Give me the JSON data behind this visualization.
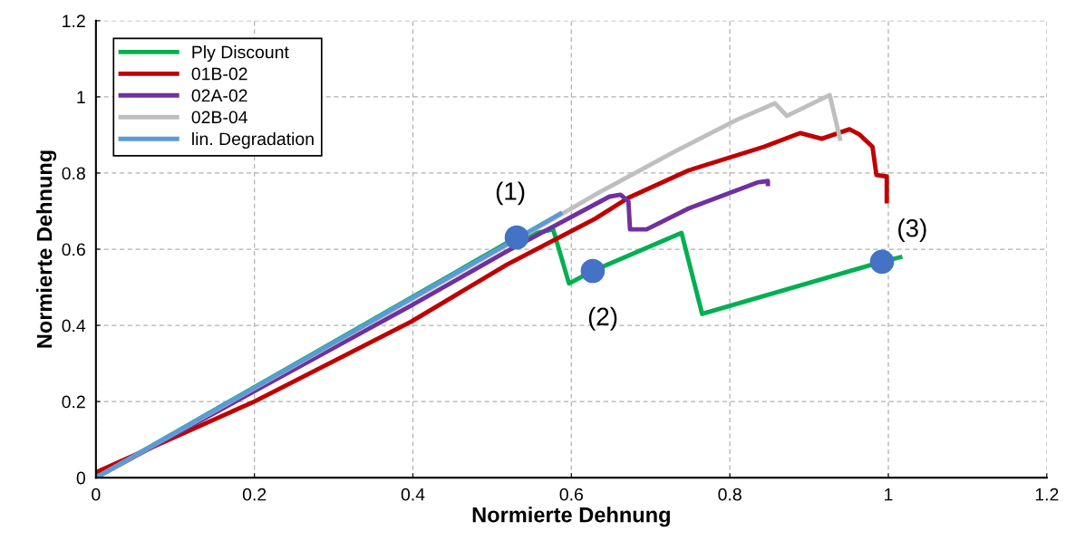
{
  "chart_data": {
    "type": "line",
    "xlabel": "Normierte Dehnung",
    "ylabel": "Normierte Dehnung",
    "xlim": [
      0,
      1.2
    ],
    "xticks": [
      0,
      0.2,
      0.4,
      0.6,
      0.8,
      1,
      1.2
    ],
    "ylim": [
      0,
      1.2
    ],
    "yticks": [
      0,
      0.2,
      0.4,
      0.6,
      0.8,
      1,
      1.2
    ],
    "grid": true,
    "legend": "top left",
    "line_style": "solid",
    "marker": "none",
    "series": [
      {
        "name": "Ply Discount",
        "color": "#00b050",
        "x": [
          0,
          0.531,
          0.577,
          0.597,
          0.627,
          0.739,
          0.765,
          0.992,
          1.015
        ],
        "values": [
          0,
          0.631,
          0.652,
          0.51,
          0.543,
          0.643,
          0.43,
          0.567,
          0.579
        ]
      },
      {
        "name": "01B-02",
        "color": "#c00000",
        "x": [
          0,
          0.2,
          0.398,
          0.519,
          0.63,
          0.672,
          0.748,
          0.843,
          0.889,
          0.916,
          0.951,
          0.963,
          0.98,
          0.985,
          0.998,
          0.998
        ],
        "values": [
          0.014,
          0.2,
          0.41,
          0.56,
          0.68,
          0.735,
          0.807,
          0.869,
          0.905,
          0.89,
          0.915,
          0.902,
          0.869,
          0.795,
          0.791,
          0.726
        ]
      },
      {
        "name": "02A-02",
        "color": "#7030a0",
        "x": [
          0,
          0.398,
          0.519,
          0.648,
          0.662,
          0.672,
          0.674,
          0.695,
          0.748,
          0.836,
          0.848,
          0.848
        ],
        "values": [
          0,
          0.452,
          0.595,
          0.738,
          0.743,
          0.726,
          0.652,
          0.652,
          0.707,
          0.776,
          0.779,
          0.771
        ]
      },
      {
        "name": "02B-04",
        "color": "#bfbfbf",
        "x": [
          0,
          0.4,
          0.586,
          0.634,
          0.729,
          0.809,
          0.857,
          0.872,
          0.926,
          0.939
        ],
        "values": [
          0,
          0.47,
          0.69,
          0.748,
          0.855,
          0.94,
          0.983,
          0.95,
          1.005,
          0.89
        ]
      },
      {
        "name": "lin. Degradation",
        "color": "#5b9bd5",
        "x": [
          0,
          0.586
        ],
        "values": [
          0,
          0.693
        ]
      },
      {
        "type": "scatter",
        "marker": "circle",
        "color": "#4472c4",
        "x": [
          0.531,
          0.627,
          0.992
        ],
        "values": [
          0.631,
          0.543,
          0.567
        ]
      }
    ],
    "annotations": [
      {
        "text": "(1)",
        "x": 0.531,
        "y": 0.631
      },
      {
        "text": "(2)",
        "x": 0.627,
        "y": 0.543
      },
      {
        "text": "(3)",
        "x": 0.992,
        "y": 0.567
      }
    ]
  }
}
